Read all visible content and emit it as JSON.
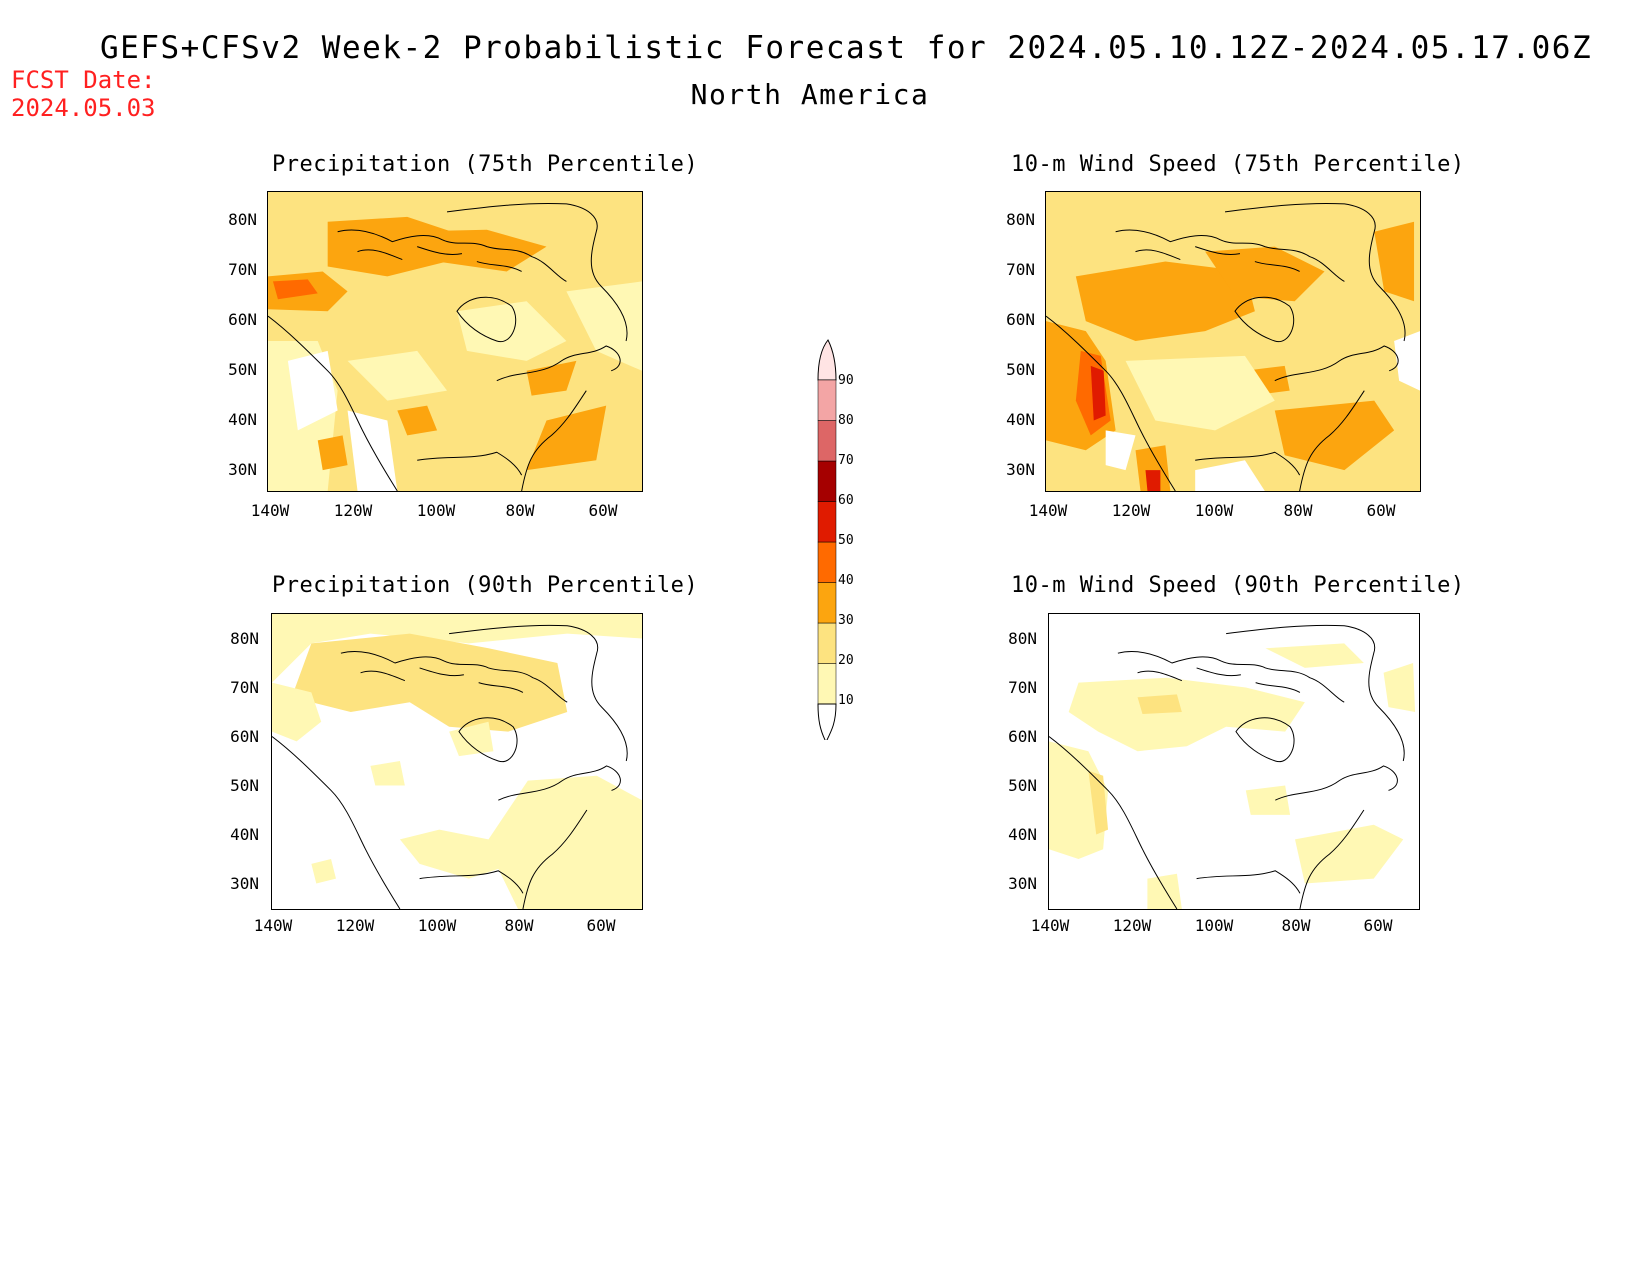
{
  "header": {
    "title": "GEFS+CFSv2 Week-2 Probabilistic Forecast for 2024.05.10.12Z-2024.05.17.06Z",
    "subtitle": "North America",
    "fcst_label": "FCST Date:",
    "fcst_date": "2024.05.03"
  },
  "panels": [
    {
      "title": "Precipitation (75th Percentile)",
      "variable": "precipitation",
      "percentile": "75th"
    },
    {
      "title": "10-m Wind Speed (75th Percentile)",
      "variable": "10-m wind speed",
      "percentile": "75th"
    },
    {
      "title": "Precipitation (90th Percentile)",
      "variable": "precipitation",
      "percentile": "90th"
    },
    {
      "title": "10-m Wind Speed (90th Percentile)",
      "variable": "10-m wind speed",
      "percentile": "90th"
    }
  ],
  "axes": {
    "lat_ticks": [
      "80N",
      "70N",
      "60N",
      "50N",
      "40N",
      "30N"
    ],
    "lon_ticks": [
      "140W",
      "120W",
      "100W",
      "80W",
      "60W"
    ],
    "lat_range": [
      25,
      85
    ],
    "lon_range": [
      -140,
      -50
    ]
  },
  "colorbar": {
    "levels": [
      "10",
      "20",
      "30",
      "40",
      "50",
      "60",
      "70",
      "80",
      "90"
    ],
    "colors": [
      "#fff8b4",
      "#fde380",
      "#fca50f",
      "#ff6a00",
      "#e01b00",
      "#a50000",
      "#dd6666",
      "#f3a5a5",
      "#ffe4e4"
    ]
  }
}
